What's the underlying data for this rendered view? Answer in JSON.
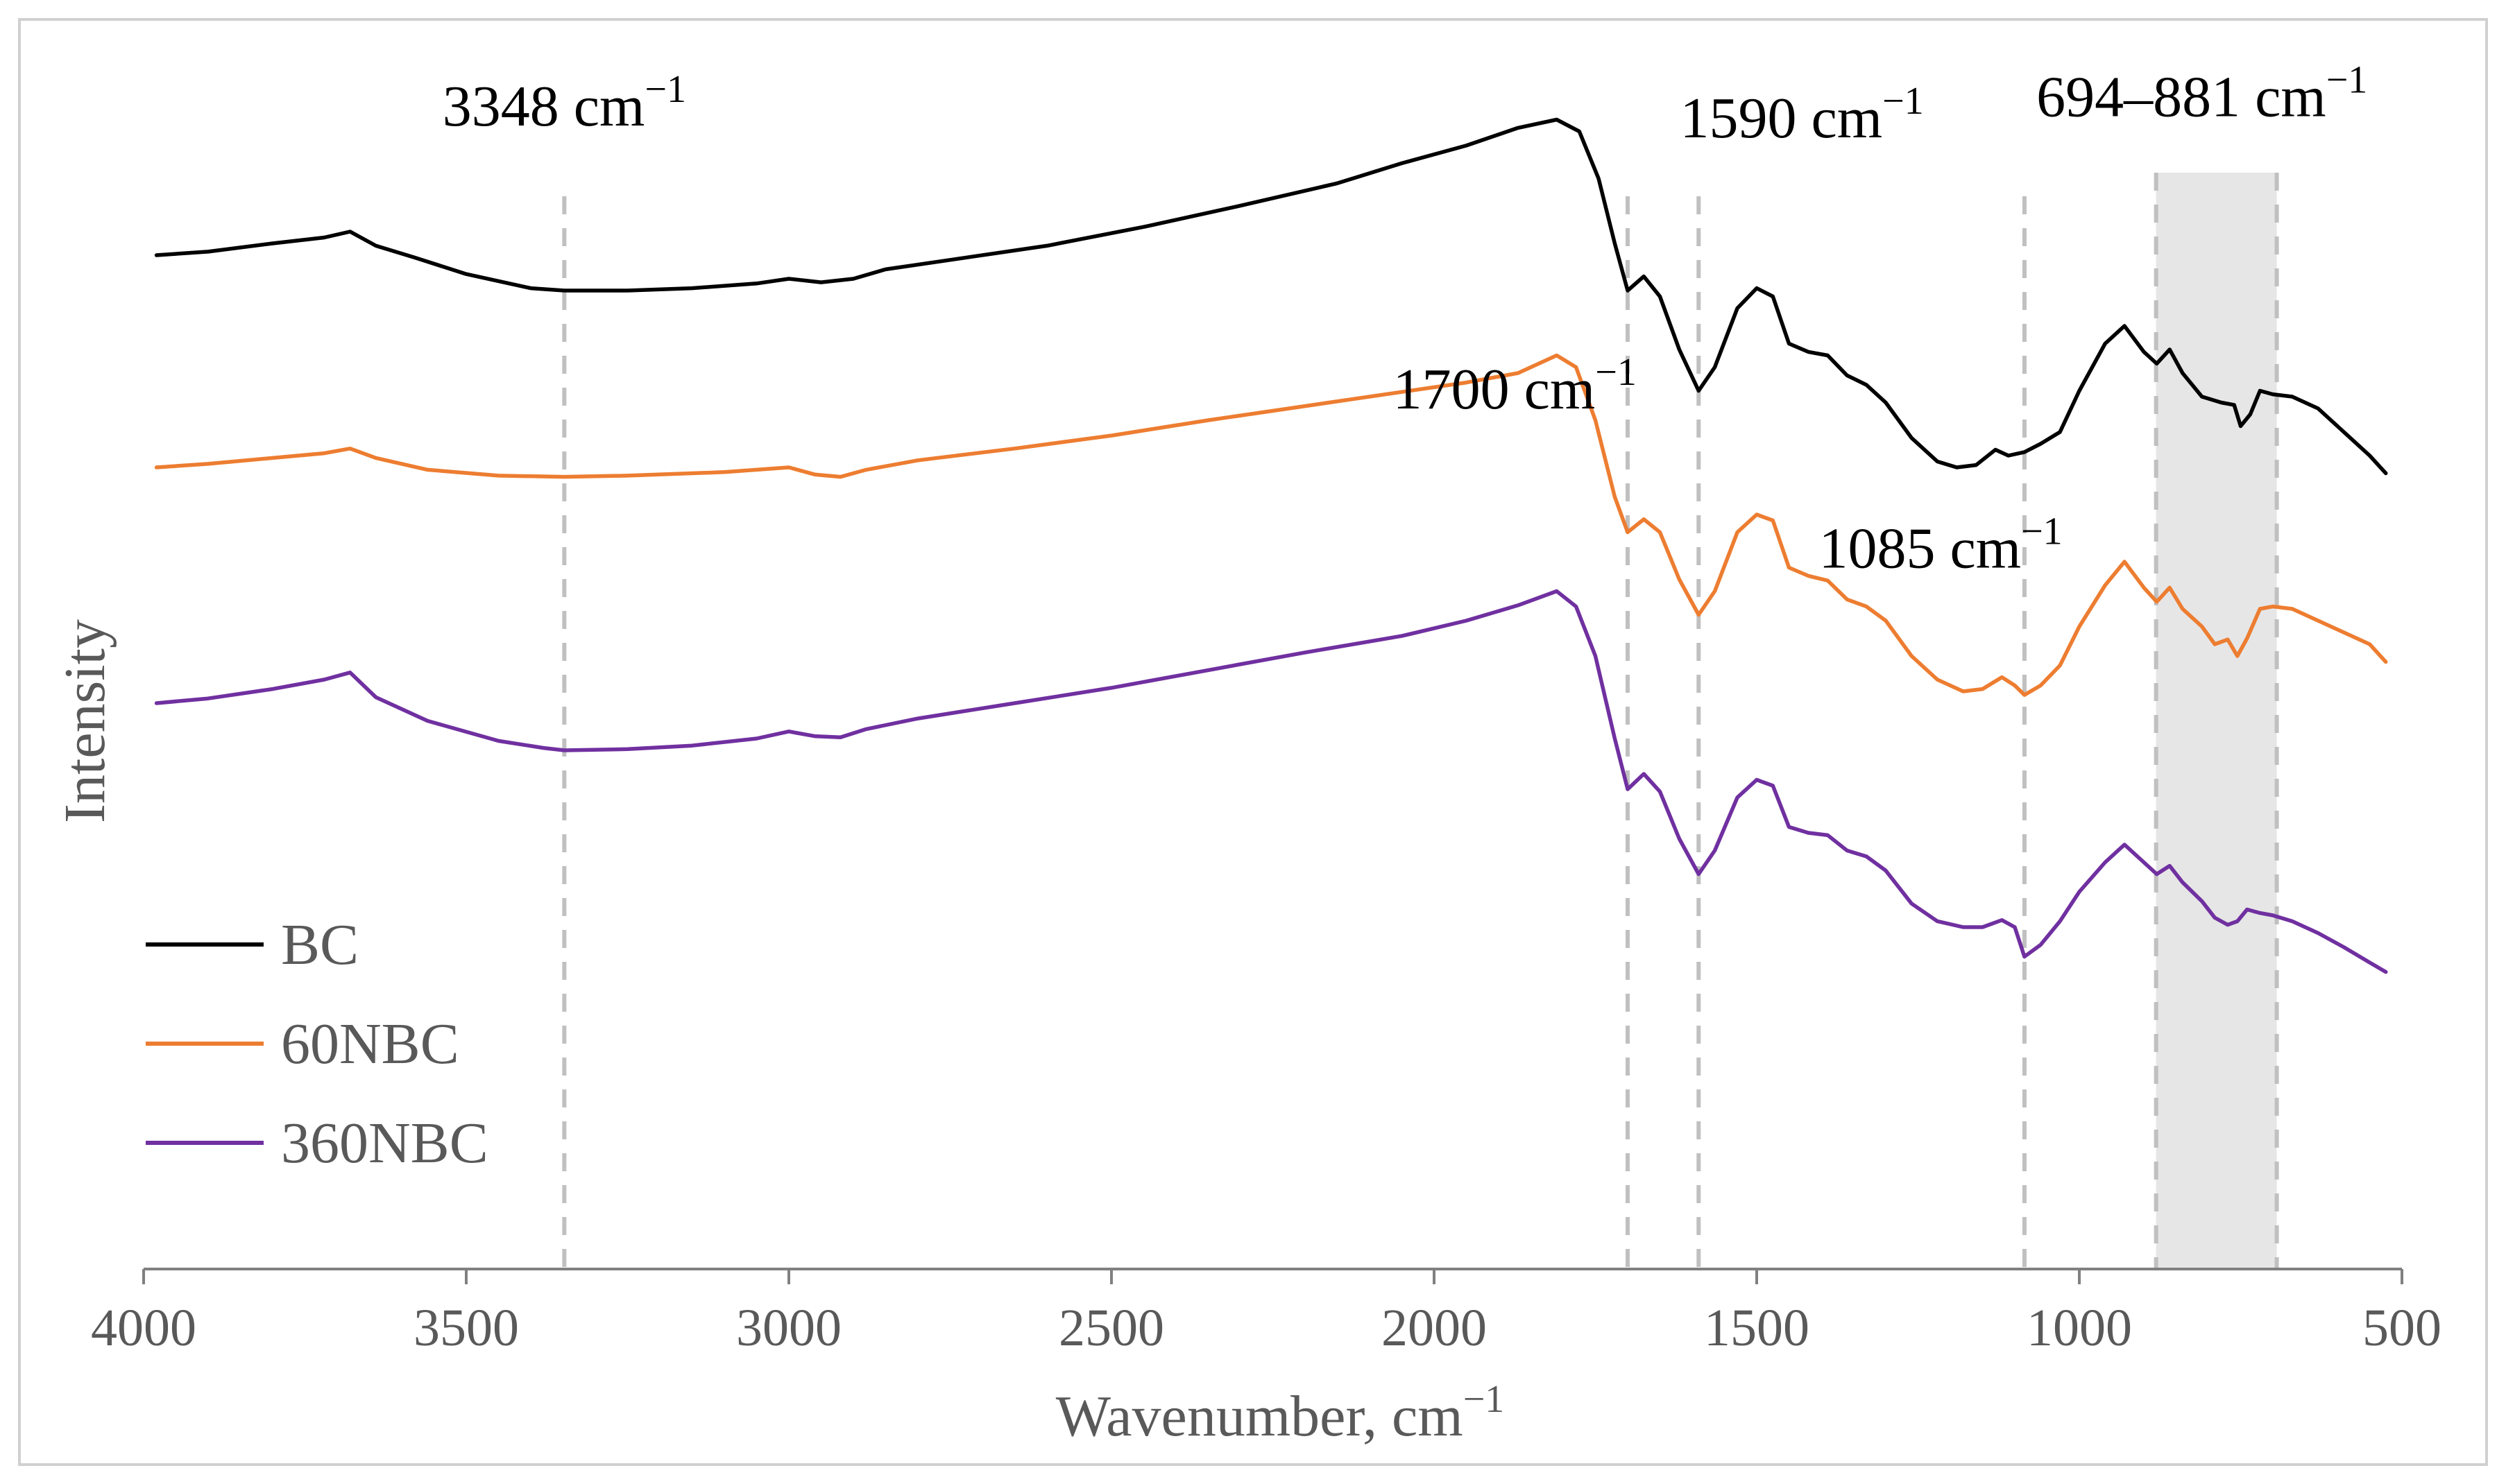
{
  "chart_data": {
    "type": "line",
    "title": "",
    "xlabel": "Wavenumber, cm",
    "xlabel_sup": "−1",
    "ylabel": "Intensity",
    "xlim": [
      4000,
      500
    ],
    "x_reversed": true,
    "ylim": [
      0,
      100
    ],
    "y_ticks_shown": false,
    "grid": false,
    "x_ticks": [
      {
        "value": 4000,
        "label": "4000"
      },
      {
        "value": 3500,
        "label": "3500"
      },
      {
        "value": 3000,
        "label": "3000"
      },
      {
        "value": 2500,
        "label": "2500"
      },
      {
        "value": 2000,
        "label": "2000"
      },
      {
        "value": 1500,
        "label": "1500"
      },
      {
        "value": 1000,
        "label": "1000"
      },
      {
        "value": 500,
        "label": "500"
      }
    ],
    "legend_position": "bottom-left",
    "series": [
      {
        "name": "BC",
        "color": "#000000",
        "points": [
          [
            3980,
            86.0
          ],
          [
            3900,
            86.3
          ],
          [
            3800,
            87.0
          ],
          [
            3720,
            87.5
          ],
          [
            3680,
            88.0
          ],
          [
            3640,
            86.8
          ],
          [
            3580,
            85.8
          ],
          [
            3500,
            84.4
          ],
          [
            3400,
            83.2
          ],
          [
            3348,
            83.0
          ],
          [
            3250,
            83.0
          ],
          [
            3150,
            83.2
          ],
          [
            3050,
            83.6
          ],
          [
            3000,
            84.0
          ],
          [
            2950,
            83.7
          ],
          [
            2900,
            84.0
          ],
          [
            2850,
            84.8
          ],
          [
            2750,
            85.6
          ],
          [
            2600,
            86.8
          ],
          [
            2450,
            88.4
          ],
          [
            2300,
            90.2
          ],
          [
            2150,
            92.1
          ],
          [
            2050,
            93.8
          ],
          [
            1950,
            95.3
          ],
          [
            1870,
            96.8
          ],
          [
            1810,
            97.5
          ],
          [
            1775,
            96.5
          ],
          [
            1745,
            92.5
          ],
          [
            1720,
            87.0
          ],
          [
            1700,
            83.0
          ],
          [
            1675,
            84.2
          ],
          [
            1650,
            82.5
          ],
          [
            1620,
            78.0
          ],
          [
            1590,
            74.5
          ],
          [
            1565,
            76.5
          ],
          [
            1530,
            81.5
          ],
          [
            1500,
            83.2
          ],
          [
            1475,
            82.5
          ],
          [
            1450,
            78.5
          ],
          [
            1420,
            77.8
          ],
          [
            1390,
            77.5
          ],
          [
            1360,
            75.8
          ],
          [
            1330,
            75.0
          ],
          [
            1300,
            73.5
          ],
          [
            1260,
            70.5
          ],
          [
            1220,
            68.5
          ],
          [
            1190,
            68.0
          ],
          [
            1160,
            68.2
          ],
          [
            1130,
            69.5
          ],
          [
            1110,
            69.0
          ],
          [
            1085,
            69.3
          ],
          [
            1060,
            70.0
          ],
          [
            1030,
            71.0
          ],
          [
            1000,
            74.5
          ],
          [
            960,
            78.5
          ],
          [
            930,
            80.0
          ],
          [
            900,
            77.8
          ],
          [
            880,
            76.8
          ],
          [
            860,
            78.0
          ],
          [
            840,
            76.0
          ],
          [
            810,
            74.0
          ],
          [
            780,
            73.5
          ],
          [
            760,
            73.3
          ],
          [
            750,
            71.5
          ],
          [
            735,
            72.5
          ],
          [
            720,
            74.5
          ],
          [
            700,
            74.2
          ],
          [
            670,
            74.0
          ],
          [
            630,
            73.0
          ],
          [
            590,
            71.0
          ],
          [
            550,
            69.0
          ],
          [
            525,
            67.5
          ]
        ]
      },
      {
        "name": "60NBC",
        "color": "#ED7D31",
        "points": [
          [
            3980,
            68.0
          ],
          [
            3900,
            68.3
          ],
          [
            3800,
            68.8
          ],
          [
            3720,
            69.2
          ],
          [
            3680,
            69.6
          ],
          [
            3640,
            68.8
          ],
          [
            3560,
            67.8
          ],
          [
            3450,
            67.3
          ],
          [
            3348,
            67.2
          ],
          [
            3250,
            67.3
          ],
          [
            3100,
            67.6
          ],
          [
            3000,
            68.0
          ],
          [
            2960,
            67.4
          ],
          [
            2920,
            67.2
          ],
          [
            2880,
            67.8
          ],
          [
            2800,
            68.6
          ],
          [
            2650,
            69.6
          ],
          [
            2500,
            70.7
          ],
          [
            2350,
            72.0
          ],
          [
            2200,
            73.2
          ],
          [
            2050,
            74.4
          ],
          [
            1950,
            75.2
          ],
          [
            1870,
            76.0
          ],
          [
            1810,
            77.5
          ],
          [
            1780,
            76.5
          ],
          [
            1750,
            72.0
          ],
          [
            1720,
            65.5
          ],
          [
            1700,
            62.5
          ],
          [
            1675,
            63.6
          ],
          [
            1650,
            62.5
          ],
          [
            1620,
            58.5
          ],
          [
            1590,
            55.5
          ],
          [
            1565,
            57.5
          ],
          [
            1530,
            62.5
          ],
          [
            1500,
            64.0
          ],
          [
            1475,
            63.5
          ],
          [
            1450,
            59.5
          ],
          [
            1420,
            58.8
          ],
          [
            1390,
            58.4
          ],
          [
            1360,
            56.8
          ],
          [
            1330,
            56.2
          ],
          [
            1300,
            55.0
          ],
          [
            1260,
            52.0
          ],
          [
            1220,
            50.0
          ],
          [
            1180,
            49.0
          ],
          [
            1150,
            49.2
          ],
          [
            1120,
            50.2
          ],
          [
            1100,
            49.5
          ],
          [
            1085,
            48.7
          ],
          [
            1060,
            49.5
          ],
          [
            1030,
            51.2
          ],
          [
            1000,
            54.5
          ],
          [
            960,
            58.0
          ],
          [
            930,
            60.0
          ],
          [
            900,
            57.8
          ],
          [
            880,
            56.6
          ],
          [
            860,
            57.8
          ],
          [
            840,
            56.0
          ],
          [
            810,
            54.5
          ],
          [
            790,
            53.0
          ],
          [
            770,
            53.4
          ],
          [
            755,
            52.0
          ],
          [
            740,
            53.5
          ],
          [
            720,
            56.0
          ],
          [
            700,
            56.2
          ],
          [
            670,
            56.0
          ],
          [
            630,
            55.0
          ],
          [
            590,
            54.0
          ],
          [
            550,
            53.0
          ],
          [
            525,
            51.5
          ]
        ]
      },
      {
        "name": "360NBC",
        "color": "#7030A0",
        "points": [
          [
            3980,
            48.0
          ],
          [
            3900,
            48.4
          ],
          [
            3800,
            49.2
          ],
          [
            3720,
            50.0
          ],
          [
            3680,
            50.6
          ],
          [
            3640,
            48.5
          ],
          [
            3560,
            46.5
          ],
          [
            3450,
            44.8
          ],
          [
            3380,
            44.2
          ],
          [
            3348,
            44.0
          ],
          [
            3250,
            44.1
          ],
          [
            3150,
            44.4
          ],
          [
            3050,
            45.0
          ],
          [
            3000,
            45.6
          ],
          [
            2960,
            45.2
          ],
          [
            2920,
            45.1
          ],
          [
            2880,
            45.8
          ],
          [
            2800,
            46.7
          ],
          [
            2650,
            48.0
          ],
          [
            2500,
            49.3
          ],
          [
            2350,
            50.8
          ],
          [
            2200,
            52.3
          ],
          [
            2050,
            53.7
          ],
          [
            1950,
            55.0
          ],
          [
            1870,
            56.3
          ],
          [
            1810,
            57.5
          ],
          [
            1780,
            56.2
          ],
          [
            1750,
            52.0
          ],
          [
            1720,
            45.0
          ],
          [
            1700,
            40.7
          ],
          [
            1675,
            42.0
          ],
          [
            1650,
            40.5
          ],
          [
            1620,
            36.5
          ],
          [
            1590,
            33.5
          ],
          [
            1565,
            35.5
          ],
          [
            1530,
            40.0
          ],
          [
            1500,
            41.5
          ],
          [
            1475,
            41.0
          ],
          [
            1450,
            37.5
          ],
          [
            1420,
            37.0
          ],
          [
            1390,
            36.8
          ],
          [
            1360,
            35.5
          ],
          [
            1330,
            35.0
          ],
          [
            1300,
            33.8
          ],
          [
            1260,
            31.0
          ],
          [
            1220,
            29.5
          ],
          [
            1180,
            29.0
          ],
          [
            1150,
            29.0
          ],
          [
            1120,
            29.6
          ],
          [
            1100,
            29.0
          ],
          [
            1085,
            26.5
          ],
          [
            1060,
            27.5
          ],
          [
            1030,
            29.5
          ],
          [
            1000,
            32.0
          ],
          [
            960,
            34.5
          ],
          [
            930,
            36.0
          ],
          [
            900,
            34.5
          ],
          [
            880,
            33.5
          ],
          [
            860,
            34.2
          ],
          [
            840,
            32.8
          ],
          [
            810,
            31.2
          ],
          [
            790,
            29.8
          ],
          [
            770,
            29.2
          ],
          [
            755,
            29.5
          ],
          [
            740,
            30.5
          ],
          [
            720,
            30.2
          ],
          [
            700,
            30.0
          ],
          [
            670,
            29.5
          ],
          [
            630,
            28.5
          ],
          [
            590,
            27.3
          ],
          [
            550,
            26.0
          ],
          [
            525,
            25.2
          ]
        ]
      }
    ],
    "annotations": [
      {
        "text": "3348 cm",
        "sup": "−1",
        "x": 3348,
        "y": 97,
        "anchor": "middle",
        "guide_x": 3348,
        "guide_y": 91
      },
      {
        "text": "1590 cm",
        "sup": "−1",
        "x": 1430,
        "y": 96,
        "anchor": "middle",
        "guide_x": 1590,
        "guide_y": 91
      },
      {
        "text": "1700 cm",
        "sup": "−1",
        "x": 1875,
        "y": 73,
        "anchor": "middle",
        "guide_x": 1700,
        "guide_y": 91
      },
      {
        "text": "1085 cm",
        "sup": "−1",
        "x": 1215,
        "y": 59.5,
        "anchor": "middle",
        "guide_x": 1085,
        "guide_y": 91
      },
      {
        "text": "694–881 cm",
        "sup": "−1",
        "x": 810,
        "y": 97.8,
        "anchor": "middle",
        "guide_x": null,
        "guide_y": null
      }
    ],
    "shaded_region": {
      "x_from": 881,
      "x_to": 694,
      "y_top": 93,
      "color": "#E6E6E6",
      "label": "694–881 cm−1"
    }
  }
}
